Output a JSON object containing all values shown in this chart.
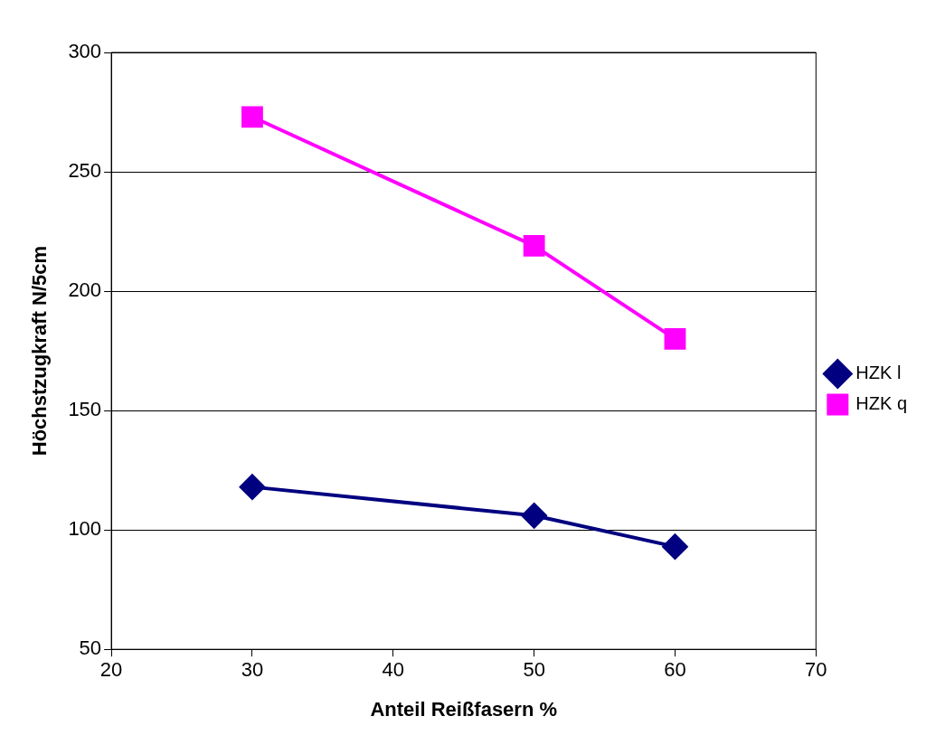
{
  "chart_data": {
    "type": "line",
    "xlabel": "Anteil Reißfasern %",
    "ylabel": "Höchstzugkraft N/5cm",
    "xlim": [
      20,
      70
    ],
    "xticks": [
      20,
      30,
      40,
      50,
      60,
      70
    ],
    "ylim": [
      50,
      300
    ],
    "yticks": [
      50,
      100,
      150,
      200,
      250,
      300
    ],
    "grid": "y",
    "legend": "right",
    "series": [
      {
        "name": "HZK l",
        "color": "#000080",
        "marker": "diamond",
        "x": [
          30,
          50,
          60
        ],
        "values": [
          118,
          106,
          93
        ]
      },
      {
        "name": "HZK q",
        "color": "#ff00ff",
        "marker": "square",
        "x": [
          30,
          50,
          60
        ],
        "values": [
          273,
          219,
          180
        ]
      }
    ]
  }
}
